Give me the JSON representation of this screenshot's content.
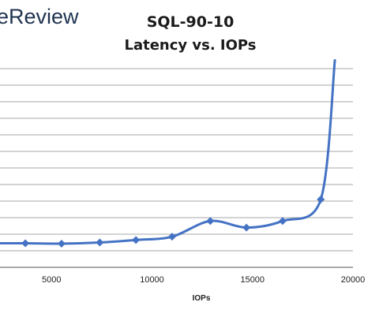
{
  "brand": {
    "logo_text": "eReview"
  },
  "colors": {
    "series": "#4472C4",
    "grid": "#8a8a8a",
    "text": "#222222",
    "logo": "#1f3350"
  },
  "chart_data": {
    "type": "line",
    "title": "SQL-90-10",
    "subtitle": "Latency vs. IOPs",
    "xlabel": "IOPs",
    "ylabel": "",
    "xlim": [
      0,
      20000
    ],
    "ylim": [
      0,
      12
    ],
    "x_ticks": [
      5000,
      10000,
      15000,
      20000
    ],
    "grid": true,
    "legend": "none",
    "marker": "diamond",
    "smooth": true,
    "series": [
      {
        "x": [
          1800,
          3700,
          5500,
          7400,
          9200,
          11000,
          12900,
          14700,
          16500,
          18400,
          19100
        ],
        "y": [
          1.45,
          1.45,
          1.43,
          1.5,
          1.65,
          1.85,
          2.8,
          2.4,
          2.8,
          4.1,
          12.5
        ],
        "markers": [
          true,
          true,
          true,
          true,
          true,
          true,
          true,
          true,
          true,
          true,
          false
        ]
      }
    ]
  }
}
